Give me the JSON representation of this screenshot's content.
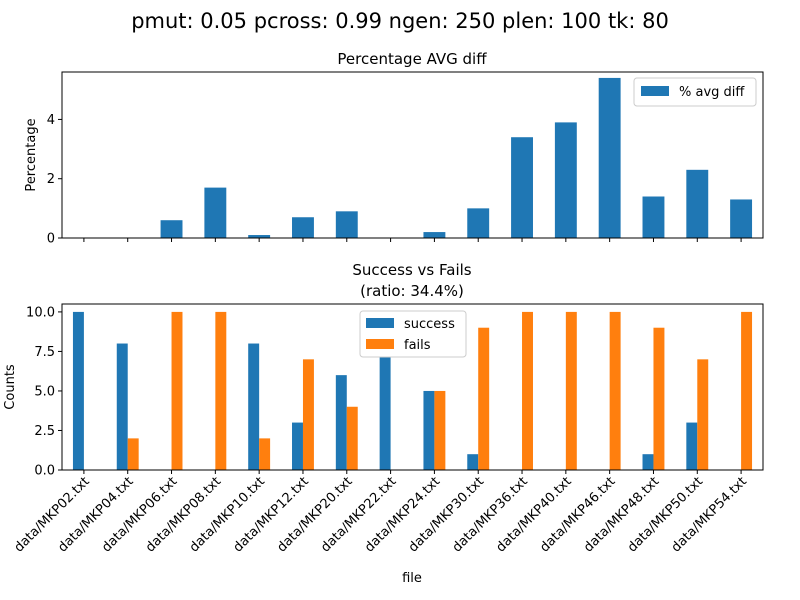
{
  "figure": {
    "suptitle": "pmut: 0.05 pcross: 0.99 ngen: 250 plen: 100 tk: 80"
  },
  "colors": {
    "blue": "#1f77b4",
    "orange": "#ff7f0e",
    "axis": "#000000"
  },
  "chart_data": [
    {
      "type": "bar",
      "title": "Percentage AVG diff",
      "xlabel": "",
      "ylabel": "Percentage",
      "ylim": [
        0,
        5.6
      ],
      "yticks": [
        0,
        2,
        4
      ],
      "grid": false,
      "legend": "top-right",
      "categories": [
        "data/MKP02.txt",
        "data/MKP04.txt",
        "data/MKP06.txt",
        "data/MKP08.txt",
        "data/MKP10.txt",
        "data/MKP12.txt",
        "data/MKP20.txt",
        "data/MKP22.txt",
        "data/MKP24.txt",
        "data/MKP30.txt",
        "data/MKP36.txt",
        "data/MKP40.txt",
        "data/MKP46.txt",
        "data/MKP48.txt",
        "data/MKP50.txt",
        "data/MKP54.txt"
      ],
      "series": [
        {
          "name": "% avg diff",
          "color": "#1f77b4",
          "values": [
            0,
            0,
            0.6,
            1.7,
            0.1,
            0.7,
            0.9,
            0,
            0.2,
            1.0,
            3.4,
            3.9,
            5.4,
            1.4,
            2.3,
            1.3
          ]
        }
      ]
    },
    {
      "type": "bar",
      "title": "Success vs Fails",
      "subtitle": "(ratio: 34.4%)",
      "xlabel": "file",
      "ylabel": "Counts",
      "ylim": [
        0,
        10.5
      ],
      "yticks": [
        "0.0",
        "2.5",
        "5.0",
        "7.5",
        "10.0"
      ],
      "grid": false,
      "legend": "top-center",
      "categories": [
        "data/MKP02.txt",
        "data/MKP04.txt",
        "data/MKP06.txt",
        "data/MKP08.txt",
        "data/MKP10.txt",
        "data/MKP12.txt",
        "data/MKP20.txt",
        "data/MKP22.txt",
        "data/MKP24.txt",
        "data/MKP30.txt",
        "data/MKP36.txt",
        "data/MKP40.txt",
        "data/MKP46.txt",
        "data/MKP48.txt",
        "data/MKP50.txt",
        "data/MKP54.txt"
      ],
      "series": [
        {
          "name": "success",
          "color": "#1f77b4",
          "values": [
            10,
            8,
            0,
            0,
            8,
            3,
            6,
            10,
            5,
            1,
            0,
            0,
            0,
            1,
            3,
            0
          ]
        },
        {
          "name": "fails",
          "color": "#ff7f0e",
          "values": [
            0,
            2,
            10,
            10,
            2,
            7,
            4,
            0,
            5,
            9,
            10,
            10,
            10,
            9,
            7,
            10
          ]
        }
      ]
    }
  ]
}
